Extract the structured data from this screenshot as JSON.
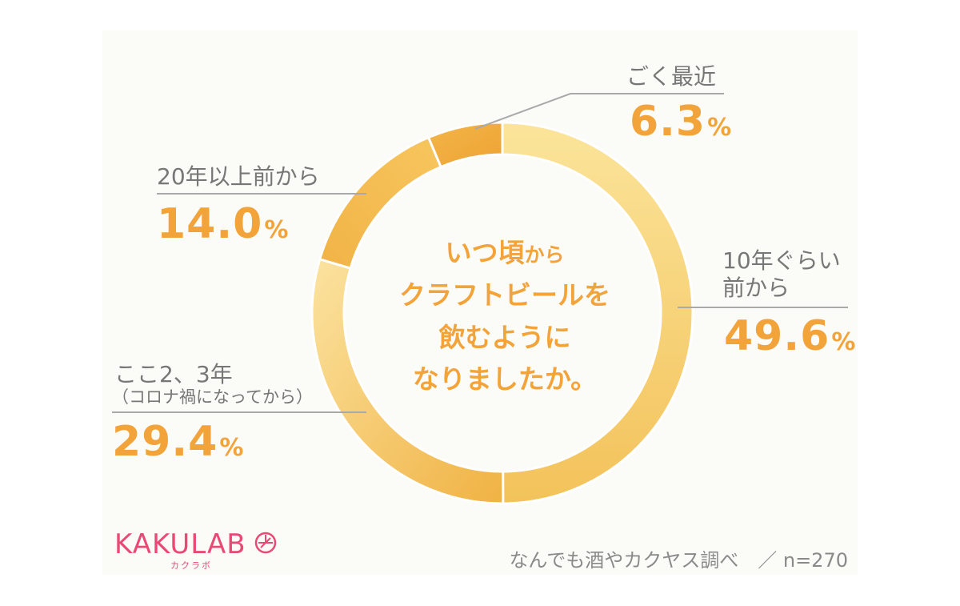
{
  "chart_data": {
    "type": "pie",
    "title": "いつ頃からクラフトビールを飲むようになりましたか。",
    "title_parts": {
      "line1_main": "いつ頃",
      "line1_small": "から",
      "line2": "クラフトビールを",
      "line3": "飲むように",
      "line4": "なりましたか。"
    },
    "slices": [
      {
        "label": "ごく最近",
        "value": 6.3,
        "color": "#f0aa3a"
      },
      {
        "label": "10年ぐらい前から",
        "value": 49.6,
        "color": "#f5c65a"
      },
      {
        "label": "ここ2、3年（コロナ禍になってから）",
        "value": 29.4,
        "color": "#f2b84a"
      },
      {
        "label": "20年以上前から",
        "value": 14.0,
        "color": "#f0ae3c"
      }
    ],
    "unit": "%"
  },
  "labels": {
    "recent": {
      "text": "ごく最近",
      "pct": "6.3"
    },
    "ten_years": {
      "line1": "10年ぐらい",
      "line2": "前から",
      "pct": "49.6"
    },
    "two_three": {
      "line1": "ここ2、3年",
      "line2": "（コロナ禍になってから）",
      "pct": "29.4"
    },
    "twenty_plus": {
      "text": "20年以上前から",
      "pct": "14.0"
    },
    "unit": "%"
  },
  "footer": {
    "logo": "KAKULAB",
    "logo_sub": "カクラボ",
    "source": "なんでも酒やカクヤス調べ　／ n=270"
  },
  "colors": {
    "accent": "#f2a33a",
    "logo": "#e84a75",
    "line": "#a9a9a9",
    "text": "#777777"
  }
}
